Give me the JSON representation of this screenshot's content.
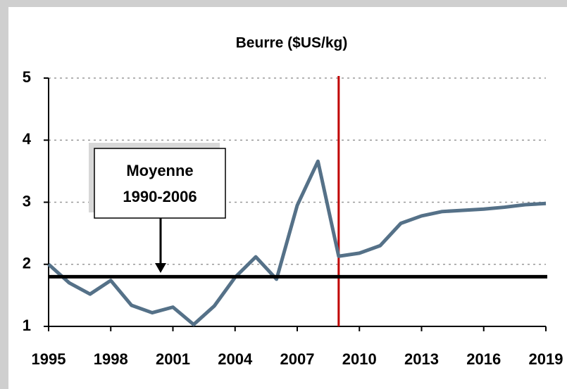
{
  "chart_data": {
    "type": "line",
    "title": "Beurre ($US/kg)",
    "x": [
      1995,
      1996,
      1997,
      1998,
      1999,
      2000,
      2001,
      2002,
      2003,
      2004,
      2005,
      2006,
      2007,
      2008,
      2009,
      2010,
      2011,
      2012,
      2013,
      2014,
      2015,
      2016,
      2017,
      2018,
      2019
    ],
    "series": [
      {
        "color": "#557188",
        "values": [
          2.0,
          1.7,
          1.52,
          1.74,
          1.34,
          1.22,
          1.31,
          1.03,
          1.33,
          1.79,
          2.12,
          1.76,
          2.95,
          3.66,
          2.13,
          2.18,
          2.3,
          2.66,
          2.78,
          2.85,
          2.87,
          2.89,
          2.92,
          2.96,
          2.98
        ]
      }
    ],
    "xlim": [
      1995,
      2019
    ],
    "xticks": [
      1995,
      1998,
      2001,
      2004,
      2007,
      2010,
      2013,
      2016,
      2019
    ],
    "ylim": [
      1,
      5
    ],
    "yticks": [
      1,
      2,
      3,
      4,
      5
    ],
    "grid": true,
    "reference_lines": {
      "average": 1.8,
      "average_color": "#000000",
      "divider_x": 2009,
      "divider_color": "#c00000"
    },
    "annotation": [
      "Moyenne",
      "1990-2006"
    ]
  }
}
